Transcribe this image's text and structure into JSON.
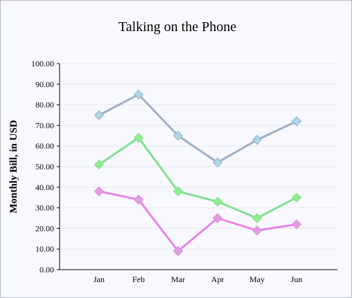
{
  "chart_data": {
    "type": "line",
    "title": "Talking on the Phone",
    "xlabel": "",
    "ylabel": "Monthly Bill, in USD",
    "categories": [
      "Jan",
      "Feb",
      "Mar",
      "Apr",
      "May",
      "Jun"
    ],
    "ylim": [
      0,
      100
    ],
    "y_ticks": [
      "0.00",
      "10.00",
      "20.00",
      "30.00",
      "40.00",
      "50.00",
      "60.00",
      "70.00",
      "80.00",
      "90.00",
      "100.00"
    ],
    "grid": true,
    "legend": "none",
    "series": [
      {
        "values": [
          75,
          85,
          65,
          52,
          63,
          72
        ],
        "line_color": "#9db0c8",
        "marker_color": "#add8e6"
      },
      {
        "values": [
          51,
          64,
          38,
          33,
          25,
          35
        ],
        "line_color": "#7fe08f",
        "marker_color": "#90ee90"
      },
      {
        "values": [
          38,
          34,
          9,
          25,
          19,
          22
        ],
        "line_color": "#e882e8",
        "marker_color": "#dda0dd"
      }
    ]
  }
}
